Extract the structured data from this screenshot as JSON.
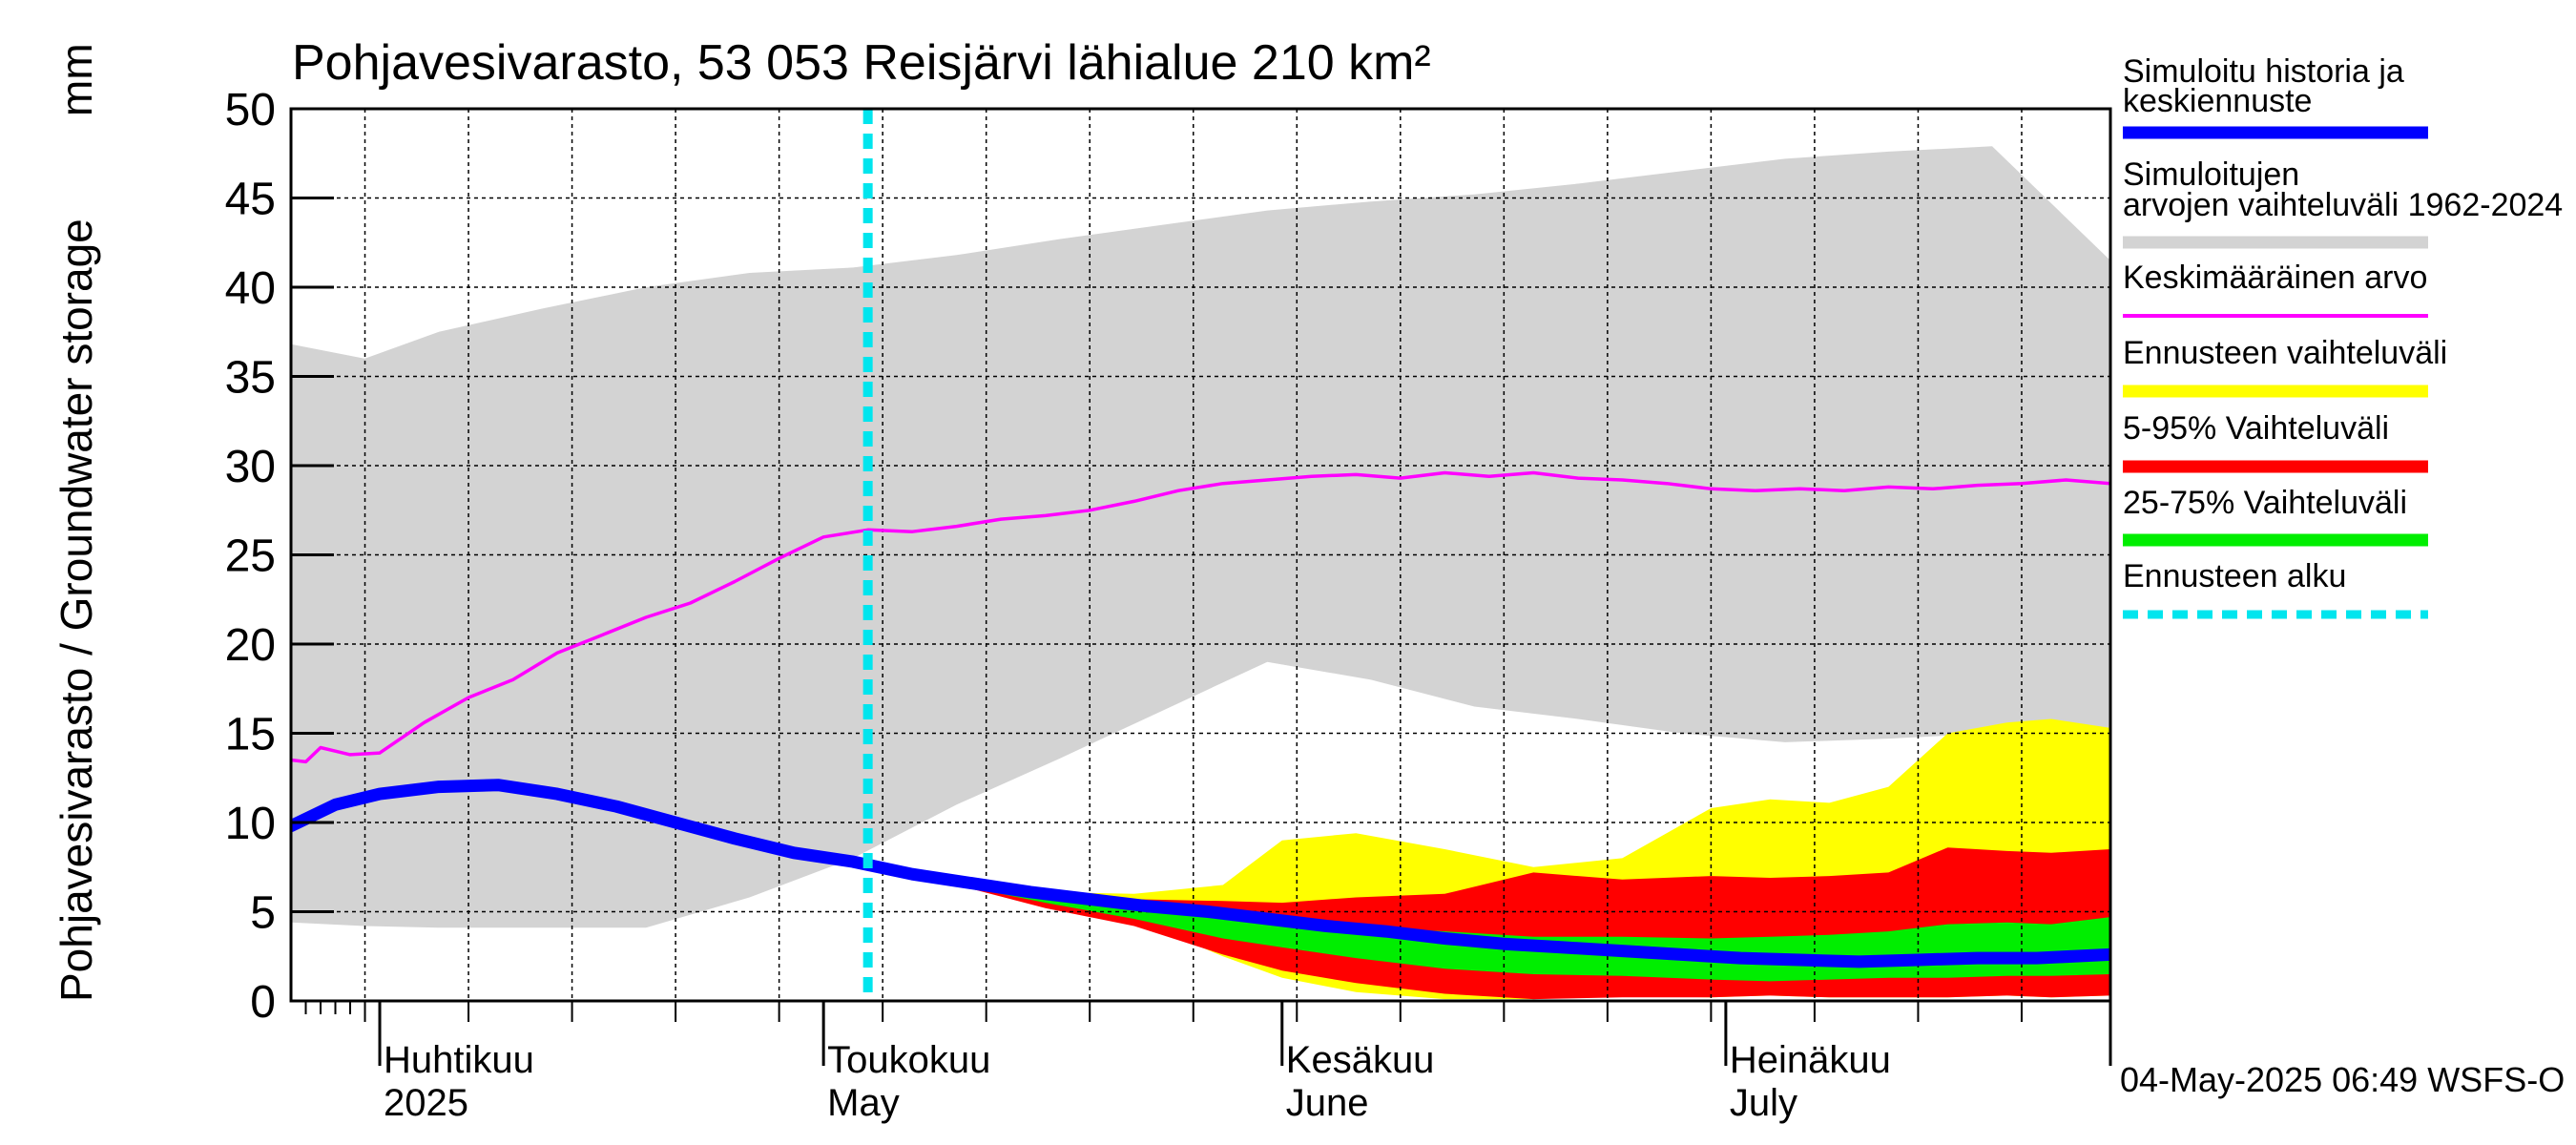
{
  "chart_data": {
    "type": "area",
    "title": "Pohjavesivarasto, 53 053 Reisjärvi lähialue 210 km²",
    "unit_label": "mm",
    "ylabel": "Pohjavesivarasto / Groundwater storage",
    "ylim": [
      0,
      50
    ],
    "yticks": [
      "0",
      "5",
      "10",
      "15",
      "20",
      "25",
      "30",
      "35",
      "40",
      "45",
      "50"
    ],
    "x_range": [
      "2025-03-26",
      "2025-07-27"
    ],
    "x_month_labels": [
      {
        "date": "2025-04-01",
        "fi": "Huhtikuu",
        "en": "2025"
      },
      {
        "date": "2025-05-01",
        "fi": "Toukokuu",
        "en": "May"
      },
      {
        "date": "2025-06-01",
        "fi": "Kesäkuu",
        "en": "June"
      },
      {
        "date": "2025-07-01",
        "fi": "Heinäkuu",
        "en": "July"
      }
    ],
    "forecast_start": "2025-05-04",
    "timestamp": "04-May-2025 06:49 WSFS-O",
    "colors": {
      "history": "#0000ff",
      "sim_range": "#d3d3d3",
      "mean": "#ff00ff",
      "forecast_range": "#ffff00",
      "range_5_95": "#ff0000",
      "range_25_75": "#00ee00",
      "forecast_start": "#00e5ee"
    },
    "legend": [
      {
        "key": "history",
        "label": "Simuloitu historia ja keskiennuste",
        "style": "thick"
      },
      {
        "key": "sim_range",
        "label": "Simuloitujen arvojen vaihteluväli 1962-2024",
        "style": "band"
      },
      {
        "key": "mean",
        "label": "Keskimääräinen arvo",
        "style": "thin"
      },
      {
        "key": "forecast_range",
        "label": "Ennusteen vaihteluväli",
        "style": "band"
      },
      {
        "key": "range_5_95",
        "label": "5-95% Vaihteluväli",
        "style": "band"
      },
      {
        "key": "range_25_75",
        "label": "25-75% Vaihteluväli",
        "style": "band"
      },
      {
        "key": "forecast_start",
        "label": "Ennusteen alku",
        "style": "dashed"
      }
    ],
    "series": {
      "sim_range": {
        "x": [
          "2025-03-26",
          "2025-03-31",
          "2025-04-05",
          "2025-04-12",
          "2025-04-19",
          "2025-04-26",
          "2025-05-03",
          "2025-05-10",
          "2025-05-17",
          "2025-05-24",
          "2025-05-31",
          "2025-06-07",
          "2025-06-14",
          "2025-06-21",
          "2025-06-28",
          "2025-07-05",
          "2025-07-12",
          "2025-07-19",
          "2025-07-27"
        ],
        "upper": [
          36.8,
          36.0,
          37.5,
          38.8,
          40.0,
          40.8,
          41.1,
          41.8,
          42.7,
          43.5,
          44.3,
          44.8,
          45.2,
          45.8,
          46.5,
          47.2,
          47.6,
          47.9,
          41.5
        ],
        "lower": [
          4.4,
          4.2,
          4.1,
          4.1,
          4.1,
          5.8,
          8.0,
          11.0,
          13.6,
          16.3,
          19.0,
          18.0,
          16.5,
          15.8,
          15.0,
          14.5,
          14.7,
          15.0,
          13.3
        ]
      },
      "mean": {
        "x": [
          "2025-03-26",
          "2025-03-27",
          "2025-03-28",
          "2025-03-29",
          "2025-03-30",
          "2025-04-01",
          "2025-04-04",
          "2025-04-07",
          "2025-04-10",
          "2025-04-13",
          "2025-04-16",
          "2025-04-19",
          "2025-04-22",
          "2025-04-25",
          "2025-04-28",
          "2025-05-01",
          "2025-05-04",
          "2025-05-07",
          "2025-05-10",
          "2025-05-13",
          "2025-05-16",
          "2025-05-19",
          "2025-05-22",
          "2025-05-25",
          "2025-05-28",
          "2025-05-31",
          "2025-06-03",
          "2025-06-06",
          "2025-06-09",
          "2025-06-12",
          "2025-06-15",
          "2025-06-18",
          "2025-06-21",
          "2025-06-24",
          "2025-06-27",
          "2025-06-30",
          "2025-07-03",
          "2025-07-06",
          "2025-07-09",
          "2025-07-12",
          "2025-07-15",
          "2025-07-18",
          "2025-07-21",
          "2025-07-24",
          "2025-07-27"
        ],
        "values": [
          13.5,
          13.4,
          14.2,
          14.0,
          13.8,
          13.9,
          15.6,
          17.0,
          18.0,
          19.5,
          20.5,
          21.5,
          22.3,
          23.5,
          24.8,
          26.0,
          26.4,
          26.3,
          26.6,
          27.0,
          27.2,
          27.5,
          28.0,
          28.6,
          29.0,
          29.2,
          29.4,
          29.5,
          29.3,
          29.6,
          29.4,
          29.6,
          29.3,
          29.2,
          29.0,
          28.7,
          28.6,
          28.7,
          28.6,
          28.8,
          28.7,
          28.9,
          29.0,
          29.2,
          29.0
        ]
      },
      "history_median": {
        "x": [
          "2025-03-26",
          "2025-03-29",
          "2025-04-01",
          "2025-04-05",
          "2025-04-09",
          "2025-04-13",
          "2025-04-17",
          "2025-04-21",
          "2025-04-25",
          "2025-04-29",
          "2025-05-03",
          "2025-05-07",
          "2025-05-11",
          "2025-05-15",
          "2025-05-19",
          "2025-05-23",
          "2025-05-27",
          "2025-05-31",
          "2025-06-04",
          "2025-06-08",
          "2025-06-12",
          "2025-06-16",
          "2025-06-20",
          "2025-06-24",
          "2025-06-28",
          "2025-07-02",
          "2025-07-06",
          "2025-07-10",
          "2025-07-14",
          "2025-07-18",
          "2025-07-22",
          "2025-07-27"
        ],
        "values": [
          9.8,
          11.0,
          11.6,
          12.0,
          12.1,
          11.6,
          10.9,
          10.0,
          9.1,
          8.3,
          7.8,
          7.1,
          6.6,
          6.1,
          5.7,
          5.3,
          5.0,
          4.6,
          4.2,
          3.9,
          3.5,
          3.2,
          3.0,
          2.8,
          2.6,
          2.4,
          2.3,
          2.2,
          2.3,
          2.4,
          2.4,
          2.6
        ]
      },
      "forecast_range": {
        "x": [
          "2025-05-04",
          "2025-05-10",
          "2025-05-16",
          "2025-05-22",
          "2025-05-28",
          "2025-06-01",
          "2025-06-06",
          "2025-06-12",
          "2025-06-18",
          "2025-06-24",
          "2025-06-30",
          "2025-07-04",
          "2025-07-08",
          "2025-07-12",
          "2025-07-16",
          "2025-07-20",
          "2025-07-23",
          "2025-07-27"
        ],
        "upper": [
          8.0,
          6.6,
          6.1,
          6.0,
          6.5,
          9.0,
          9.4,
          8.5,
          7.5,
          8.0,
          10.8,
          11.3,
          11.1,
          12.0,
          15.0,
          15.6,
          15.8,
          15.3
        ],
        "lower": [
          8.0,
          6.5,
          5.4,
          4.6,
          2.5,
          1.3,
          0.5,
          0.1,
          0.1,
          0.3,
          0.2,
          0.3,
          0.2,
          0.2,
          0.2,
          0.3,
          0.2,
          0.3
        ]
      },
      "range_5_95": {
        "x": [
          "2025-05-04",
          "2025-05-10",
          "2025-05-16",
          "2025-05-22",
          "2025-05-28",
          "2025-06-01",
          "2025-06-06",
          "2025-06-12",
          "2025-06-18",
          "2025-06-24",
          "2025-06-30",
          "2025-07-04",
          "2025-07-08",
          "2025-07-12",
          "2025-07-16",
          "2025-07-20",
          "2025-07-23",
          "2025-07-27"
        ],
        "upper": [
          8.0,
          6.5,
          5.9,
          5.7,
          5.6,
          5.5,
          5.8,
          6.0,
          7.2,
          6.8,
          7.0,
          6.9,
          7.0,
          7.2,
          8.6,
          8.4,
          8.3,
          8.5
        ],
        "lower": [
          8.0,
          6.5,
          5.2,
          4.2,
          2.6,
          1.7,
          1.0,
          0.4,
          0.1,
          0.2,
          0.2,
          0.3,
          0.2,
          0.2,
          0.2,
          0.3,
          0.2,
          0.3
        ]
      },
      "range_25_75": {
        "x": [
          "2025-05-04",
          "2025-05-10",
          "2025-05-16",
          "2025-05-22",
          "2025-05-28",
          "2025-06-01",
          "2025-06-06",
          "2025-06-12",
          "2025-06-18",
          "2025-06-24",
          "2025-06-30",
          "2025-07-04",
          "2025-07-08",
          "2025-07-12",
          "2025-07-16",
          "2025-07-20",
          "2025-07-23",
          "2025-07-27"
        ],
        "upper": [
          8.0,
          6.6,
          5.7,
          5.1,
          4.8,
          4.6,
          4.2,
          3.9,
          3.6,
          3.6,
          3.5,
          3.6,
          3.7,
          3.9,
          4.3,
          4.4,
          4.3,
          4.7
        ],
        "lower": [
          8.0,
          6.5,
          5.5,
          4.6,
          3.5,
          3.0,
          2.4,
          1.8,
          1.5,
          1.4,
          1.2,
          1.1,
          1.2,
          1.3,
          1.3,
          1.4,
          1.4,
          1.5
        ]
      }
    }
  }
}
